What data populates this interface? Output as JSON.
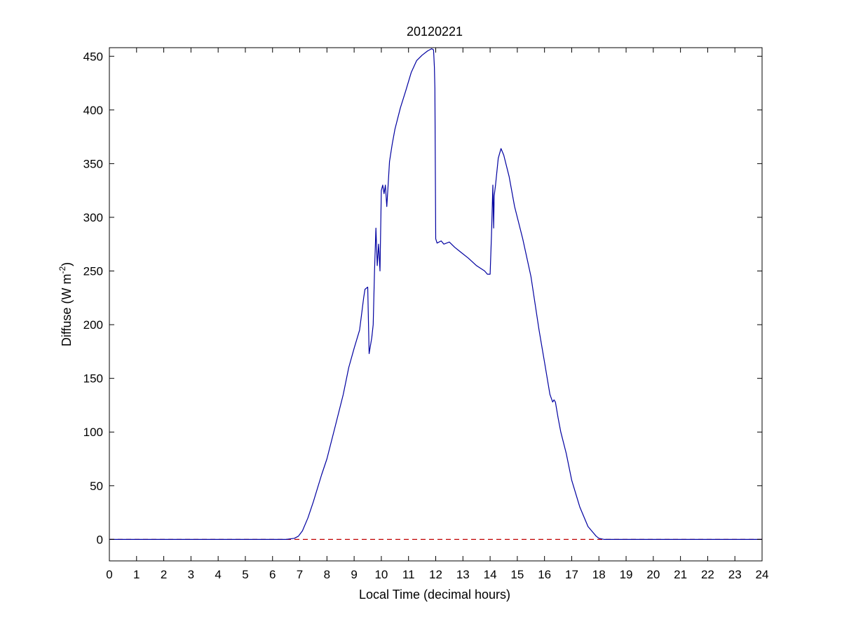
{
  "chart_data": {
    "type": "line",
    "title": "20120221",
    "xlabel": "Local Time (decimal hours)",
    "ylabel_main": "Diffuse (W m",
    "ylabel_exp": "-2",
    "ylabel_close": ")",
    "xlim": [
      0,
      24
    ],
    "ylim": [
      -20,
      458
    ],
    "xticks": [
      0,
      1,
      2,
      3,
      4,
      5,
      6,
      7,
      8,
      9,
      10,
      11,
      12,
      13,
      14,
      15,
      16,
      17,
      18,
      19,
      20,
      21,
      22,
      23,
      24
    ],
    "yticks": [
      0,
      50,
      100,
      150,
      200,
      250,
      300,
      350,
      400,
      450
    ],
    "grid": false,
    "legend": "none",
    "colors": {
      "series": "#0000a0",
      "reference": "#c00000"
    },
    "series": [
      {
        "style": "solid",
        "x": [
          0,
          3,
          6,
          6.5,
          6.8,
          6.95,
          7.1,
          7.3,
          7.5,
          7.8,
          8.0,
          8.3,
          8.6,
          8.8,
          9.0,
          9.2,
          9.3,
          9.35,
          9.4,
          9.5,
          9.55,
          9.65,
          9.7,
          9.75,
          9.8,
          9.85,
          9.9,
          9.95,
          10.0,
          10.05,
          10.1,
          10.15,
          10.2,
          10.25,
          10.3,
          10.4,
          10.5,
          10.7,
          10.9,
          11.1,
          11.3,
          11.5,
          11.7,
          11.85,
          11.92,
          11.95,
          11.97,
          12.0,
          12.05,
          12.2,
          12.3,
          12.5,
          12.7,
          12.9,
          13.2,
          13.5,
          13.8,
          13.9,
          14.0,
          14.05,
          14.1,
          14.13,
          14.15,
          14.2,
          14.3,
          14.4,
          14.5,
          14.7,
          14.9,
          15.2,
          15.5,
          15.8,
          16.0,
          16.2,
          16.3,
          16.35,
          16.4,
          16.5,
          16.6,
          16.8,
          17.0,
          17.3,
          17.6,
          17.9,
          18.0,
          18.2,
          18.5,
          19,
          20,
          21,
          22,
          23,
          24
        ],
        "y": [
          0,
          0,
          0,
          0,
          1,
          3,
          8,
          20,
          35,
          60,
          75,
          105,
          135,
          160,
          178,
          195,
          215,
          225,
          233,
          235,
          173,
          188,
          200,
          250,
          290,
          255,
          275,
          250,
          325,
          330,
          322,
          330,
          310,
          330,
          352,
          368,
          382,
          402,
          418,
          435,
          446,
          451,
          455,
          457,
          456,
          440,
          420,
          280,
          276,
          278,
          275,
          277,
          272,
          268,
          262,
          255,
          250,
          247,
          247,
          283,
          330,
          290,
          320,
          330,
          355,
          364,
          358,
          338,
          310,
          280,
          245,
          195,
          165,
          135,
          128,
          130,
          128,
          113,
          100,
          80,
          55,
          30,
          12,
          3,
          1,
          0,
          0,
          0,
          0,
          0,
          0,
          0,
          0
        ]
      }
    ],
    "reference_line": {
      "y": 0,
      "style": "dashed"
    }
  }
}
